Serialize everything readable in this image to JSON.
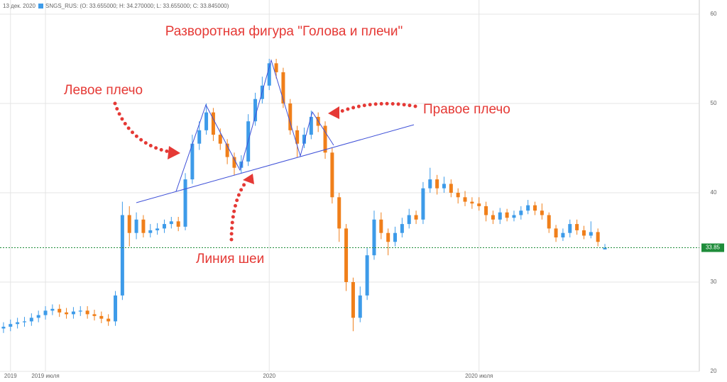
{
  "chart_data": {
    "type": "candlestick",
    "title": "Разворотная фигура \"Голова и плечи\"",
    "date_label": "13 дек. 2020",
    "legend_label": "SNGS_RUS: (O: 33.655000; H: 34.270000; L: 33.655000; C: 33.845000)",
    "annotations": [
      "Левое плечо",
      "Правое плечо",
      "Линия шеи"
    ],
    "up_color": "#3d9be9",
    "down_color": "#f07f1a",
    "annotation_color": "#e53935",
    "categories": [
      null,
      "2019",
      null,
      null,
      null,
      null,
      "2019 июля",
      null,
      null,
      null,
      null,
      null,
      null,
      null,
      null,
      null,
      null,
      null,
      null,
      null,
      null,
      null,
      null,
      null,
      null,
      null,
      null,
      null,
      null,
      null,
      null,
      null,
      null,
      null,
      null,
      null,
      null,
      null,
      "2020",
      null,
      null,
      null,
      null,
      null,
      null,
      null,
      null,
      null,
      null,
      null,
      null,
      null,
      null,
      null,
      null,
      null,
      null,
      null,
      null,
      null,
      null,
      null,
      null,
      null,
      null,
      null,
      null,
      null,
      "2020 июля",
      null,
      null,
      null,
      null,
      null,
      null,
      null,
      null,
      null,
      null,
      null,
      null,
      null,
      null,
      null,
      null,
      null,
      null
    ],
    "candles": [
      [
        24.8,
        25.5,
        24.3,
        25.0
      ],
      [
        25.0,
        25.8,
        24.5,
        25.3
      ],
      [
        25.3,
        26.0,
        24.8,
        25.5
      ],
      [
        25.5,
        26.1,
        25.0,
        25.6
      ],
      [
        25.6,
        26.5,
        25.1,
        26.0
      ],
      [
        26.0,
        26.8,
        25.5,
        26.3
      ],
      [
        26.3,
        27.3,
        25.8,
        26.8
      ],
      [
        26.8,
        27.5,
        26.3,
        27.0
      ],
      [
        27.0,
        27.5,
        26.1,
        26.6
      ],
      [
        26.6,
        27.1,
        25.9,
        26.4
      ],
      [
        26.4,
        27.2,
        25.9,
        26.7
      ],
      [
        26.7,
        27.3,
        26.2,
        26.8
      ],
      [
        26.8,
        27.3,
        25.9,
        26.4
      ],
      [
        26.4,
        26.9,
        25.7,
        26.2
      ],
      [
        26.2,
        26.7,
        25.4,
        25.9
      ],
      [
        25.9,
        26.4,
        25.1,
        25.6
      ],
      [
        25.6,
        29.0,
        25.1,
        28.5
      ],
      [
        28.5,
        39.0,
        28.0,
        37.5
      ],
      [
        37.5,
        38.5,
        34.0,
        35.5
      ],
      [
        35.5,
        37.8,
        34.8,
        37.0
      ],
      [
        37.0,
        37.5,
        35.0,
        35.5
      ],
      [
        35.5,
        36.5,
        35.0,
        35.8
      ],
      [
        35.8,
        36.6,
        35.3,
        36.0
      ],
      [
        36.0,
        37.0,
        35.5,
        36.5
      ],
      [
        36.5,
        37.3,
        36.0,
        36.8
      ],
      [
        36.8,
        37.3,
        35.7,
        36.2
      ],
      [
        36.2,
        42.2,
        35.8,
        41.5
      ],
      [
        41.5,
        46.5,
        41.0,
        45.5
      ],
      [
        45.5,
        48.0,
        44.8,
        47.0
      ],
      [
        47.0,
        50.0,
        46.5,
        49.0
      ],
      [
        49.0,
        49.5,
        45.8,
        46.5
      ],
      [
        46.5,
        47.2,
        44.8,
        45.5
      ],
      [
        45.5,
        46.0,
        43.2,
        44.0
      ],
      [
        44.0,
        44.5,
        42.0,
        42.8
      ],
      [
        42.8,
        44.2,
        42.2,
        43.5
      ],
      [
        43.5,
        48.8,
        43.0,
        48.0
      ],
      [
        48.0,
        51.2,
        47.5,
        50.5
      ],
      [
        50.5,
        53.0,
        50.0,
        52.0
      ],
      [
        52.0,
        55.0,
        51.5,
        54.5
      ],
      [
        54.5,
        55.0,
        52.8,
        53.5
      ],
      [
        53.5,
        54.0,
        49.5,
        50.0
      ],
      [
        50.0,
        50.5,
        46.5,
        47.0
      ],
      [
        47.0,
        47.5,
        44.0,
        45.5
      ],
      [
        45.5,
        47.3,
        45.0,
        46.5
      ],
      [
        46.5,
        49.2,
        46.0,
        48.5
      ],
      [
        48.5,
        49.0,
        46.8,
        47.5
      ],
      [
        47.5,
        48.0,
        43.8,
        44.5
      ],
      [
        44.5,
        45.0,
        38.8,
        39.5
      ],
      [
        39.5,
        40.0,
        34.5,
        36.0
      ],
      [
        36.0,
        36.5,
        29.0,
        30.0
      ],
      [
        30.0,
        30.5,
        24.5,
        26.0
      ],
      [
        26.0,
        29.5,
        25.5,
        28.5
      ],
      [
        28.5,
        33.8,
        28.0,
        33.0
      ],
      [
        33.0,
        38.0,
        32.5,
        37.0
      ],
      [
        37.0,
        37.8,
        34.8,
        35.5
      ],
      [
        35.5,
        36.0,
        33.0,
        34.5
      ],
      [
        34.5,
        36.2,
        34.0,
        35.5
      ],
      [
        35.5,
        37.2,
        35.0,
        36.5
      ],
      [
        36.5,
        38.2,
        36.0,
        37.5
      ],
      [
        37.5,
        38.0,
        36.5,
        37.0
      ],
      [
        37.0,
        41.2,
        36.5,
        40.5
      ],
      [
        40.5,
        42.8,
        40.0,
        41.5
      ],
      [
        41.5,
        42.0,
        39.8,
        40.5
      ],
      [
        40.5,
        41.8,
        40.0,
        41.0
      ],
      [
        41.0,
        41.5,
        39.5,
        40.0
      ],
      [
        40.0,
        40.5,
        38.8,
        39.5
      ],
      [
        39.5,
        40.2,
        38.5,
        39.0
      ],
      [
        39.0,
        39.5,
        38.2,
        38.8
      ],
      [
        38.8,
        39.5,
        38.0,
        38.5
      ],
      [
        38.5,
        39.0,
        36.8,
        37.5
      ],
      [
        37.5,
        38.0,
        36.5,
        37.0
      ],
      [
        37.0,
        38.3,
        36.5,
        37.8
      ],
      [
        37.8,
        38.2,
        36.8,
        37.2
      ],
      [
        37.2,
        38.0,
        36.8,
        37.5
      ],
      [
        37.5,
        38.5,
        37.0,
        38.0
      ],
      [
        38.0,
        39.2,
        37.6,
        38.6
      ],
      [
        38.6,
        39.0,
        37.5,
        38.0
      ],
      [
        38.0,
        38.8,
        37.0,
        37.5
      ],
      [
        37.5,
        37.8,
        35.5,
        36.0
      ],
      [
        36.0,
        36.4,
        34.5,
        35.0
      ],
      [
        35.0,
        36.0,
        34.6,
        35.5
      ],
      [
        35.5,
        37.0,
        35.0,
        36.5
      ],
      [
        36.5,
        37.0,
        35.3,
        35.8
      ],
      [
        35.8,
        36.3,
        34.8,
        35.2
      ],
      [
        35.2,
        36.8,
        34.9,
        35.6
      ],
      [
        35.6,
        36.0,
        34.0,
        34.5
      ],
      [
        33.655,
        34.27,
        33.655,
        33.845
      ]
    ],
    "last_price": {
      "value": 33.845,
      "label": "33.85"
    },
    "last_price_color": "#1e8c3a",
    "ylim": [
      20,
      60
    ],
    "yticks": [
      20,
      30,
      40,
      50,
      60
    ],
    "grid": true
  }
}
